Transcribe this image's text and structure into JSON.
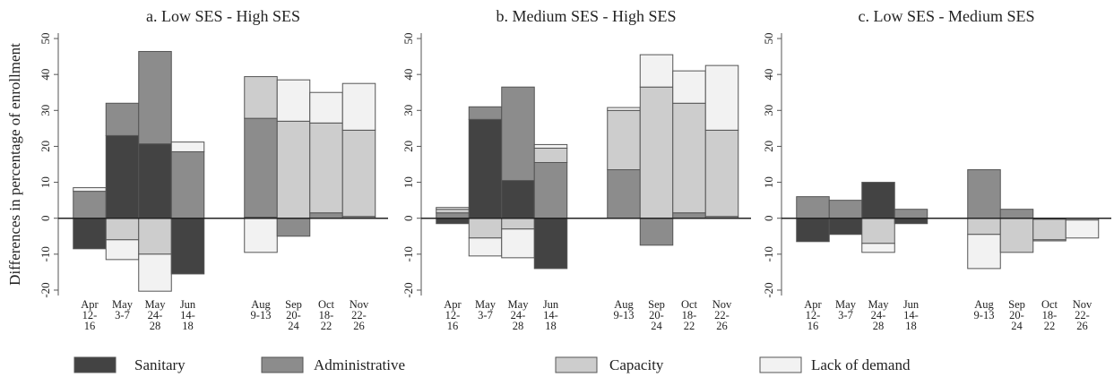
{
  "chart_data": [
    {
      "type": "stacked-bar",
      "title": "a. Low SES - High SES",
      "ylabel": "Differences in percentage of enrollment",
      "categories": [
        "Apr 12-16",
        "May 3-7",
        "May 24-28",
        "Jun 14-18",
        "Aug 9-13",
        "Sep 20-24",
        "Oct 18-22",
        "Nov 22-26"
      ],
      "ylim": [
        -21.5,
        51.5
      ],
      "yticks": [
        -20,
        -10,
        0,
        10,
        20,
        30,
        40,
        50
      ],
      "series": [
        {
          "name": "Sanitary",
          "color": "#434343",
          "values": [
            -8.5,
            23,
            20.7,
            -15.5,
            0.3,
            0,
            0,
            0
          ]
        },
        {
          "name": "Administrative",
          "color": "#8c8c8c",
          "values": [
            7.5,
            9,
            25.7,
            18.5,
            27.5,
            -5,
            1.5,
            0.5
          ]
        },
        {
          "name": "Capacity",
          "color": "#cdcdcd",
          "values": [
            0,
            -6,
            -10,
            0,
            11.6,
            27,
            25,
            24
          ]
        },
        {
          "name": "Lack of demand",
          "color": "#f2f2f2",
          "values": [
            1,
            -5.5,
            -10.3,
            2.7,
            -9.5,
            11.5,
            8.5,
            13
          ]
        }
      ]
    },
    {
      "type": "stacked-bar",
      "title": "b. Medium SES - High SES",
      "categories": [
        "Apr 12-16",
        "May 3-7",
        "May 24-28",
        "Jun 14-18",
        "Aug 9-13",
        "Sep 20-24",
        "Oct 18-22",
        "Nov 22-26"
      ],
      "ylim": [
        -21.5,
        51.5
      ],
      "yticks": [
        -20,
        -10,
        0,
        10,
        20,
        30,
        40,
        50
      ],
      "series": [
        {
          "name": "Sanitary",
          "color": "#434343",
          "values": [
            -1.5,
            27.5,
            10.5,
            -14,
            0,
            0,
            0,
            0
          ]
        },
        {
          "name": "Administrative",
          "color": "#8c8c8c",
          "values": [
            1.5,
            3.5,
            26,
            15.5,
            13.5,
            -7.5,
            1.5,
            0.5
          ]
        },
        {
          "name": "Capacity",
          "color": "#cdcdcd",
          "values": [
            1,
            -5.5,
            -3,
            4,
            16.5,
            36.5,
            30.5,
            24
          ]
        },
        {
          "name": "Lack of demand",
          "color": "#f2f2f2",
          "values": [
            0.5,
            -5,
            -8,
            1,
            0.8,
            9,
            9,
            18
          ]
        }
      ]
    },
    {
      "type": "stacked-bar",
      "title": "c. Low SES - Medium SES",
      "categories": [
        "Apr 12-16",
        "May 3-7",
        "May 24-28",
        "Jun 14-18",
        "Aug 9-13",
        "Sep 20-24",
        "Oct 18-22",
        "Nov 22-26"
      ],
      "ylim": [
        -21.5,
        51.5
      ],
      "yticks": [
        -20,
        -10,
        0,
        10,
        20,
        30,
        40,
        50
      ],
      "series": [
        {
          "name": "Sanitary",
          "color": "#434343",
          "values": [
            -6.5,
            -4.5,
            10,
            -1.5,
            0,
            0,
            0,
            0
          ]
        },
        {
          "name": "Administrative",
          "color": "#8c8c8c",
          "values": [
            6,
            5,
            0,
            2.5,
            13.5,
            2.5,
            -0.3,
            0
          ]
        },
        {
          "name": "Capacity",
          "color": "#cdcdcd",
          "values": [
            0,
            0,
            -7,
            0,
            -4.5,
            -9.5,
            -5.7,
            -0.5
          ]
        },
        {
          "name": "Lack of demand",
          "color": "#f2f2f2",
          "values": [
            0,
            0,
            -2.5,
            0,
            -9.5,
            0,
            -0.3,
            -5
          ]
        }
      ]
    }
  ]
}
